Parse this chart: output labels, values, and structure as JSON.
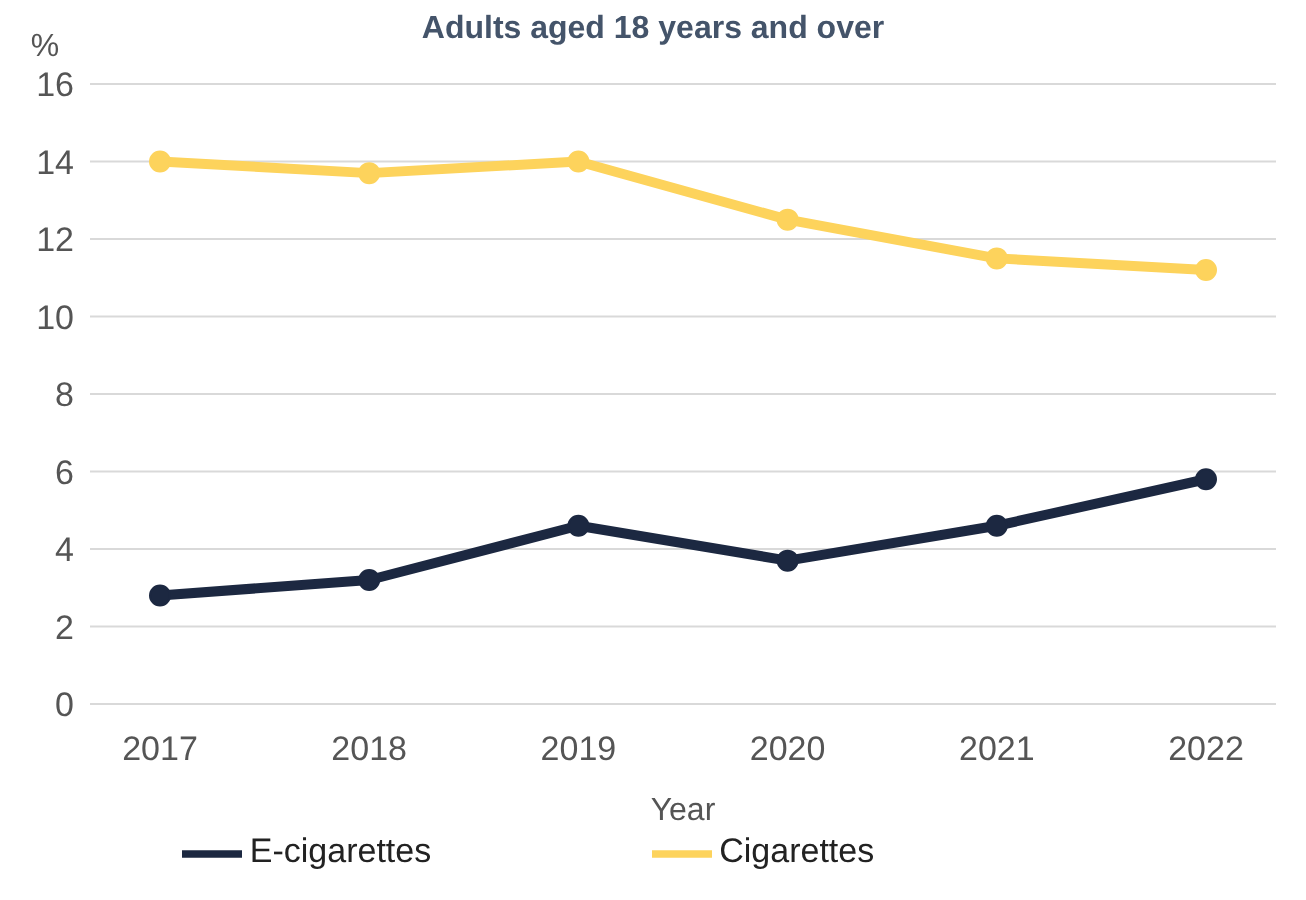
{
  "chart_data": {
    "type": "line",
    "title": "Adults aged 18 years and over",
    "xlabel": "Year",
    "ylabel": "%",
    "categories": [
      "2017",
      "2018",
      "2019",
      "2020",
      "2021",
      "2022"
    ],
    "series": [
      {
        "name": "E-cigarettes",
        "color": "#1c2841",
        "values": [
          2.8,
          3.2,
          4.6,
          3.7,
          4.6,
          5.8
        ]
      },
      {
        "name": "Cigarettes",
        "color": "#fdd35c",
        "values": [
          14.0,
          13.7,
          14.0,
          12.5,
          11.5,
          11.2
        ]
      }
    ],
    "ylim": [
      0,
      16
    ],
    "yticks": [
      0,
      2,
      4,
      6,
      8,
      10,
      12,
      14,
      16
    ],
    "grid": "y",
    "legend": "bottom",
    "marker": "circle",
    "line_style": "solid"
  }
}
